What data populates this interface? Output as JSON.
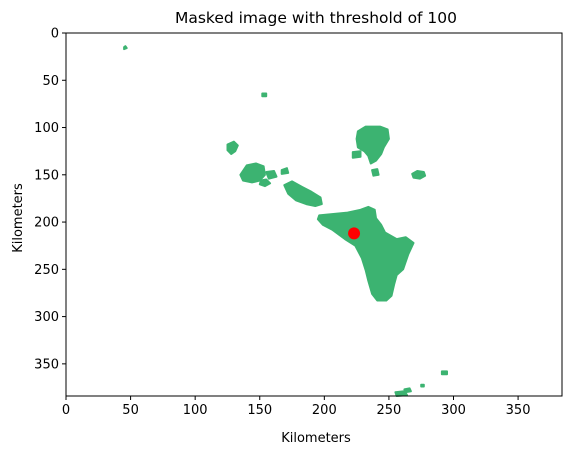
{
  "chart_data": {
    "type": "scatter",
    "title": "Masked image with threshold of 100",
    "xlabel": "Kilometers",
    "ylabel": "Kilometers",
    "xlim": [
      0,
      384
    ],
    "ylim": [
      384,
      0
    ],
    "y_inverted": true,
    "grid": false,
    "xticks": [
      0,
      50,
      100,
      150,
      200,
      250,
      300,
      350
    ],
    "yticks": [
      0,
      50,
      100,
      150,
      200,
      250,
      300,
      350
    ],
    "mask_color": "#3cb371",
    "marker_color": "#ff0000",
    "marker": {
      "x": 223,
      "y": 212
    },
    "mask_regions": [
      {
        "name": "speck-a",
        "points": [
          [
            45,
            15
          ],
          [
            46,
            14
          ],
          [
            47,
            16
          ],
          [
            45,
            17
          ]
        ]
      },
      {
        "name": "speck-b",
        "points": [
          [
            152,
            64
          ],
          [
            155,
            64
          ],
          [
            155,
            67
          ],
          [
            152,
            67
          ]
        ]
      },
      {
        "name": "north-blob",
        "points": [
          [
            226,
            104
          ],
          [
            232,
            99
          ],
          [
            243,
            99
          ],
          [
            249,
            102
          ],
          [
            250,
            112
          ],
          [
            246,
            121
          ],
          [
            244,
            128
          ],
          [
            240,
            135
          ],
          [
            236,
            138
          ],
          [
            234,
            130
          ],
          [
            231,
            125
          ],
          [
            226,
            121
          ],
          [
            225,
            112
          ]
        ]
      },
      {
        "name": "north-blob-tail",
        "points": [
          [
            222,
            126
          ],
          [
            228,
            125
          ],
          [
            228,
            131
          ],
          [
            222,
            132
          ]
        ]
      },
      {
        "name": "east-speck",
        "points": [
          [
            268,
            149
          ],
          [
            272,
            146
          ],
          [
            277,
            147
          ],
          [
            278,
            151
          ],
          [
            274,
            154
          ],
          [
            269,
            153
          ]
        ]
      },
      {
        "name": "mid-speck",
        "points": [
          [
            237,
            145
          ],
          [
            241,
            144
          ],
          [
            242,
            150
          ],
          [
            238,
            151
          ]
        ]
      },
      {
        "name": "small-west",
        "points": [
          [
            125,
            118
          ],
          [
            130,
            115
          ],
          [
            133,
            119
          ],
          [
            131,
            125
          ],
          [
            128,
            128
          ],
          [
            125,
            124
          ]
        ]
      },
      {
        "name": "west-blob",
        "points": [
          [
            135,
            150
          ],
          [
            140,
            140
          ],
          [
            147,
            138
          ],
          [
            153,
            141
          ],
          [
            154,
            150
          ],
          [
            150,
            156
          ],
          [
            144,
            158
          ],
          [
            137,
            156
          ]
        ]
      },
      {
        "name": "west-tail",
        "points": [
          [
            151,
            156
          ],
          [
            155,
            155
          ],
          [
            158,
            159
          ],
          [
            154,
            162
          ],
          [
            150,
            160
          ]
        ]
      },
      {
        "name": "west-dots",
        "points": [
          [
            155,
            147
          ],
          [
            161,
            146
          ],
          [
            163,
            152
          ],
          [
            157,
            154
          ]
        ]
      },
      {
        "name": "west-dot2",
        "points": [
          [
            167,
            145
          ],
          [
            171,
            143
          ],
          [
            172,
            148
          ],
          [
            167,
            149
          ]
        ]
      },
      {
        "name": "band",
        "points": [
          [
            169,
            161
          ],
          [
            175,
            157
          ],
          [
            183,
            163
          ],
          [
            190,
            168
          ],
          [
            197,
            174
          ],
          [
            198,
            181
          ],
          [
            193,
            183
          ],
          [
            186,
            181
          ],
          [
            178,
            177
          ],
          [
            172,
            170
          ]
        ]
      },
      {
        "name": "main-blob",
        "points": [
          [
            196,
            193
          ],
          [
            210,
            191
          ],
          [
            218,
            190
          ],
          [
            228,
            187
          ],
          [
            234,
            184
          ],
          [
            239,
            187
          ],
          [
            240,
            196
          ],
          [
            244,
            203
          ],
          [
            247,
            211
          ],
          [
            256,
            218
          ],
          [
            263,
            216
          ],
          [
            269,
            222
          ],
          [
            265,
            234
          ],
          [
            261,
            250
          ],
          [
            256,
            256
          ],
          [
            254,
            266
          ],
          [
            252,
            278
          ],
          [
            248,
            283
          ],
          [
            241,
            283
          ],
          [
            237,
            276
          ],
          [
            234,
            262
          ],
          [
            232,
            251
          ],
          [
            229,
            238
          ],
          [
            224,
            225
          ],
          [
            216,
            218
          ],
          [
            206,
            208
          ],
          [
            199,
            203
          ],
          [
            195,
            197
          ]
        ]
      },
      {
        "name": "south-specks",
        "points": [
          [
            255,
            380
          ],
          [
            262,
            379
          ],
          [
            264,
            383
          ],
          [
            256,
            384
          ]
        ]
      },
      {
        "name": "south-specks-2",
        "points": [
          [
            262,
            377
          ],
          [
            266,
            376
          ],
          [
            267,
            379
          ],
          [
            263,
            380
          ]
        ]
      },
      {
        "name": "south-specks-3",
        "points": [
          [
            291,
            358
          ],
          [
            295,
            358
          ],
          [
            295,
            361
          ],
          [
            291,
            361
          ]
        ]
      },
      {
        "name": "south-specks-4",
        "points": [
          [
            275,
            372
          ],
          [
            277,
            372
          ],
          [
            277,
            374
          ],
          [
            275,
            374
          ]
        ]
      }
    ]
  }
}
